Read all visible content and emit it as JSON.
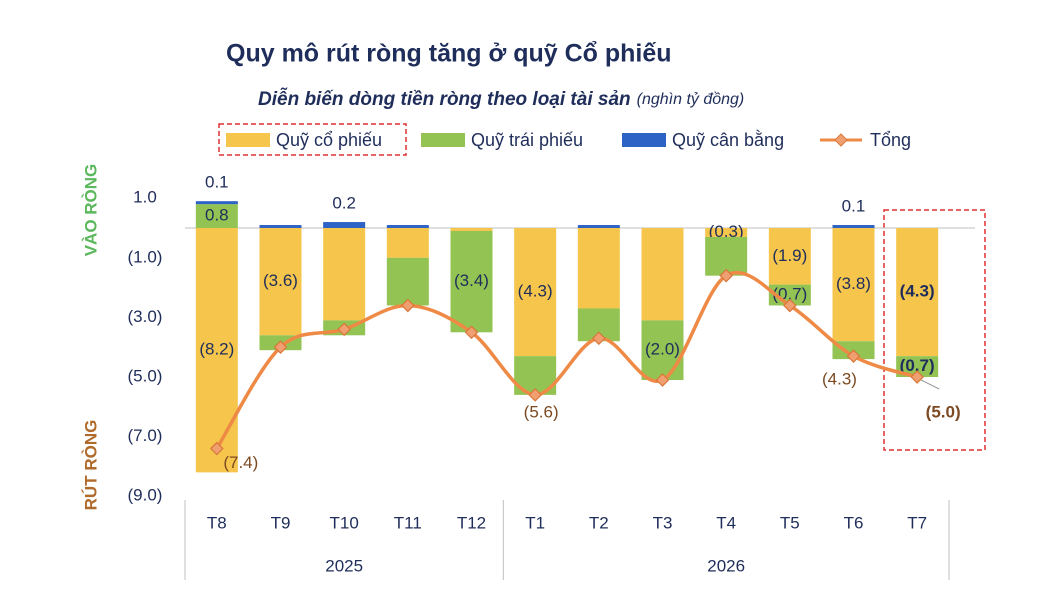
{
  "chart_data": {
    "type": "bar",
    "title": "Quy mô rút ròng tăng ở quỹ Cổ phiếu",
    "subtitle": "Diễn biến dòng tiền ròng theo loại tài sản",
    "unit": "(nghìn tỷ đồng)",
    "y_label_top": "VÀO RÒNG",
    "y_label_bottom": "RÚT RÒNG",
    "categories": [
      "T8",
      "T9",
      "T10",
      "T11",
      "T12",
      "T1",
      "T2",
      "T3",
      "T4",
      "T5",
      "T6",
      "T7"
    ],
    "category_groups": [
      {
        "label": "2025",
        "count": 5
      },
      {
        "label": "2026",
        "count": 7
      }
    ],
    "ylim": [
      -9,
      1
    ],
    "yticks": [
      {
        "value": 1,
        "label": "1.0"
      },
      {
        "value": -1,
        "label": "(1.0)"
      },
      {
        "value": -3,
        "label": "(3.0)"
      },
      {
        "value": -5,
        "label": "(5.0)"
      },
      {
        "value": -7,
        "label": "(7.0)"
      },
      {
        "value": -9,
        "label": "(9.0)"
      }
    ],
    "series": [
      {
        "name": "Quỹ cổ phiếu",
        "color": "#f5c54c",
        "values": [
          -8.2,
          -3.6,
          -3.1,
          -1.0,
          -0.1,
          -4.3,
          -2.7,
          -3.1,
          -0.3,
          -1.9,
          -3.8,
          -4.3
        ],
        "value_labels": [
          "(8.2)",
          "(3.6)",
          null,
          null,
          null,
          "(4.3)",
          null,
          null,
          "(0.3)",
          "(1.9)",
          "(3.8)",
          "(4.3)"
        ]
      },
      {
        "name": "Quỹ trái phiếu",
        "color": "#93c353",
        "values": [
          0.8,
          -0.5,
          -0.5,
          -1.6,
          -3.4,
          -1.3,
          -1.1,
          -2.0,
          -1.3,
          -0.7,
          -0.6,
          -0.7
        ],
        "value_labels": [
          "0.8",
          null,
          null,
          null,
          "(3.4)",
          null,
          null,
          "(2.0)",
          null,
          "(0.7)",
          null,
          "(0.7)"
        ]
      },
      {
        "name": "Quỹ cân bằng",
        "color": "#2e63c6",
        "values": [
          0.1,
          0.1,
          0.2,
          0.1,
          0,
          0,
          0.1,
          0,
          0,
          0,
          0.1,
          0
        ],
        "value_labels": [
          "0.1",
          null,
          "0.2",
          null,
          null,
          null,
          null,
          null,
          null,
          null,
          "0.1",
          null
        ]
      },
      {
        "name": "Tổng",
        "type": "line",
        "color": "#ee8a45",
        "values": [
          -7.4,
          -4.0,
          -3.4,
          -2.6,
          -3.5,
          -5.6,
          -3.7,
          -5.1,
          -1.6,
          -2.6,
          -4.3,
          -5.0
        ],
        "value_labels": [
          "(7.4)",
          null,
          null,
          null,
          null,
          "(5.6)",
          null,
          null,
          null,
          null,
          "(4.3)",
          "(5.0)"
        ]
      }
    ]
  }
}
